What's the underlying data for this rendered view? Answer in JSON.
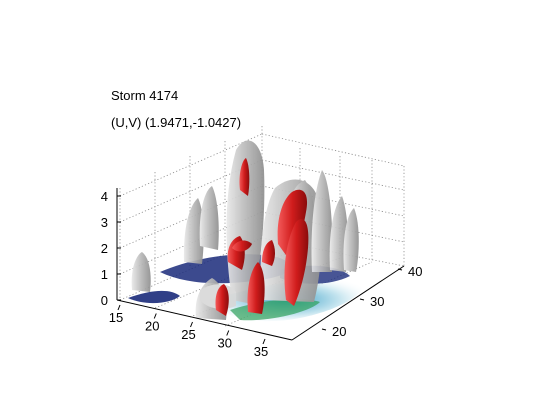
{
  "chart_data": {
    "type": "3d-isosurface",
    "title": "Storm 4174",
    "subtitle": "(U,V) (1.9471,-1.0427)",
    "xlabel": "",
    "ylabel": "",
    "zlabel": "",
    "x_ticks": [
      "15",
      "20",
      "25",
      "30",
      "35"
    ],
    "y_ticks": [
      "20",
      "30",
      "40"
    ],
    "z_ticks": [
      "0",
      "1",
      "2",
      "3",
      "4"
    ],
    "xlim": [
      15,
      36
    ],
    "ylim": [
      15,
      42
    ],
    "zlim": [
      0,
      4.3
    ],
    "grid": true,
    "colors": {
      "outer_surface": "#c8c8c8",
      "inner_surface": "#d42020",
      "floor_dark": "#1a2a7a",
      "floor_mid": "#3aa0c8",
      "floor_light": "#c8e6f0"
    }
  }
}
